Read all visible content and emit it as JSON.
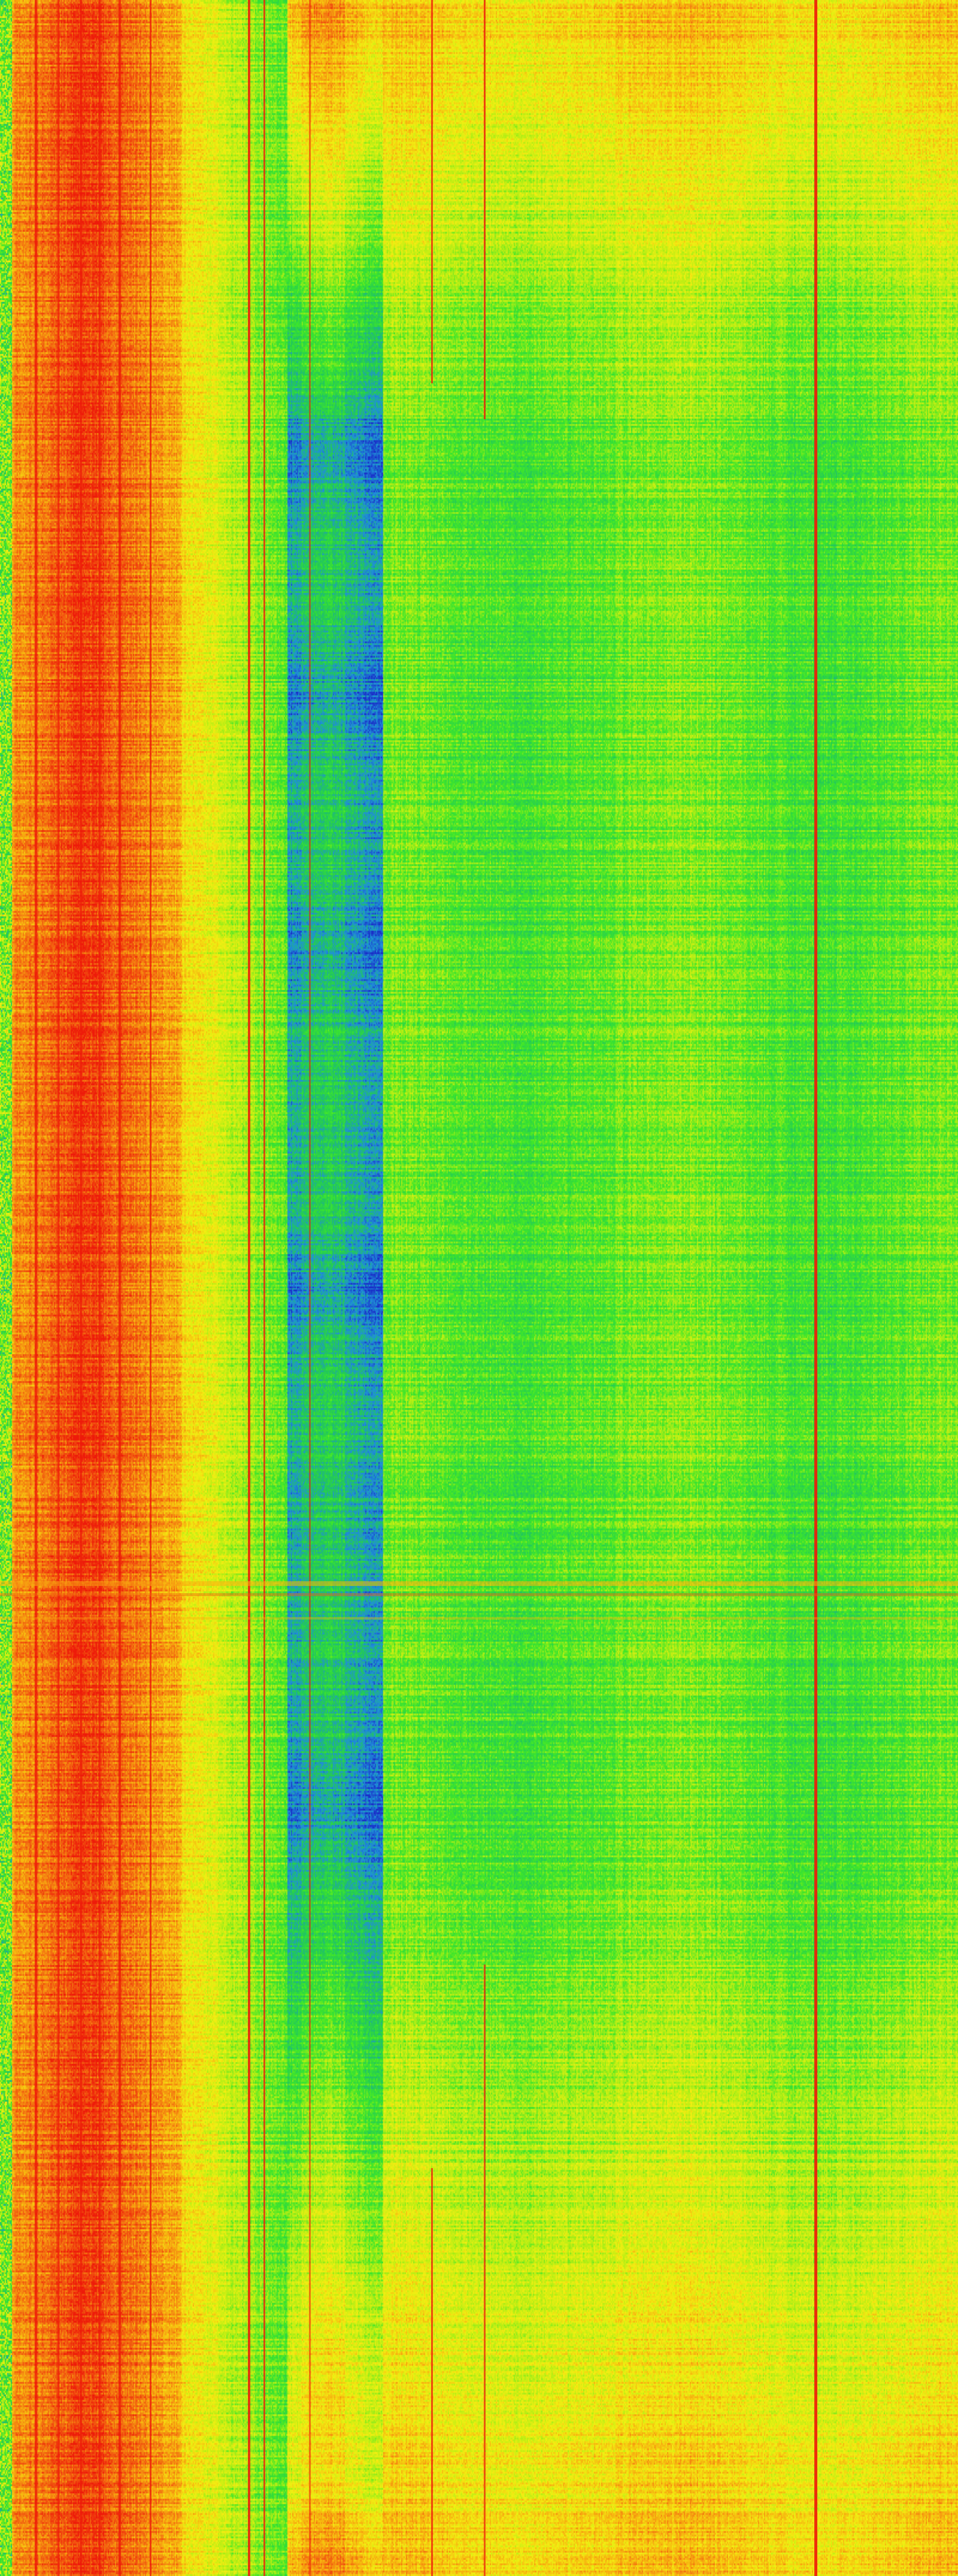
{
  "image_type": "spectrogram waterfall",
  "colormap": [
    "#1a2ec8",
    "#1f8fd8",
    "#22c85a",
    "#3ee62a",
    "#b4ee14",
    "#f2ee12",
    "#f7b010",
    "#f26010",
    "#ee1a0a"
  ],
  "colors": {
    "hot": "#ee1a0a",
    "warm": "#f7b010",
    "mid": "#3ee62a",
    "cool": "#1a2ec8"
  }
}
